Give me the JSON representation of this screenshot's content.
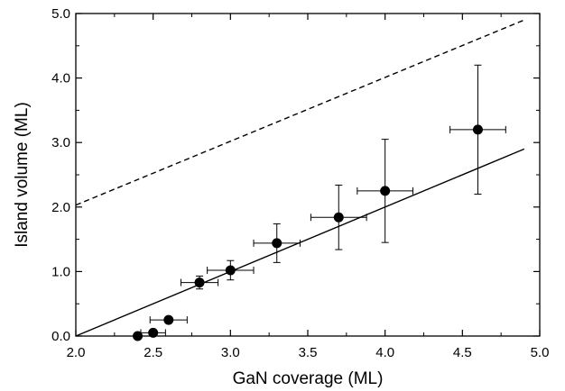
{
  "chart_data": {
    "type": "scatter",
    "xlabel": "GaN coverage (ML)",
    "ylabel": "Island volume (ML)",
    "xlim": [
      2.0,
      5.0
    ],
    "ylim": [
      0.0,
      5.0
    ],
    "grid": false,
    "x_ticks": [
      "2.0",
      "2.5",
      "3.0",
      "3.5",
      "4.0",
      "4.5",
      "5.0"
    ],
    "y_ticks": [
      "0.0",
      "1.0",
      "2.0",
      "3.0",
      "4.0",
      "5.0"
    ],
    "x_tick_values": [
      2.0,
      2.5,
      3.0,
      3.5,
      4.0,
      4.5,
      5.0
    ],
    "y_tick_values": [
      0.0,
      1.0,
      2.0,
      3.0,
      4.0,
      5.0
    ],
    "points": [
      {
        "x": 2.4,
        "y": 0.0,
        "xerr": 0.0,
        "yerr": 0.0
      },
      {
        "x": 2.5,
        "y": 0.05,
        "xerr": 0.08,
        "yerr": 0.0
      },
      {
        "x": 2.6,
        "y": 0.25,
        "xerr": 0.12,
        "yerr": 0.0
      },
      {
        "x": 2.8,
        "y": 0.83,
        "xerr": 0.12,
        "yerr": 0.1
      },
      {
        "x": 3.0,
        "y": 1.02,
        "xerr": 0.15,
        "yerr": 0.15
      },
      {
        "x": 3.3,
        "y": 1.44,
        "xerr": 0.15,
        "yerr": 0.3
      },
      {
        "x": 3.7,
        "y": 1.84,
        "xerr": 0.18,
        "yerr": 0.5
      },
      {
        "x": 4.0,
        "y": 2.25,
        "xerr": 0.18,
        "yerr": 0.8
      },
      {
        "x": 4.6,
        "y": 3.2,
        "xerr": 0.18,
        "yerr": 1.0
      }
    ],
    "lines": [
      {
        "style": "solid",
        "x": [
          2.0,
          4.9
        ],
        "y": [
          0.0,
          2.9
        ]
      },
      {
        "style": "dashed",
        "x": [
          2.0,
          4.9
        ],
        "y": [
          2.03,
          4.9
        ]
      }
    ],
    "colors": {
      "marker": "#000000",
      "line": "#000000"
    }
  }
}
